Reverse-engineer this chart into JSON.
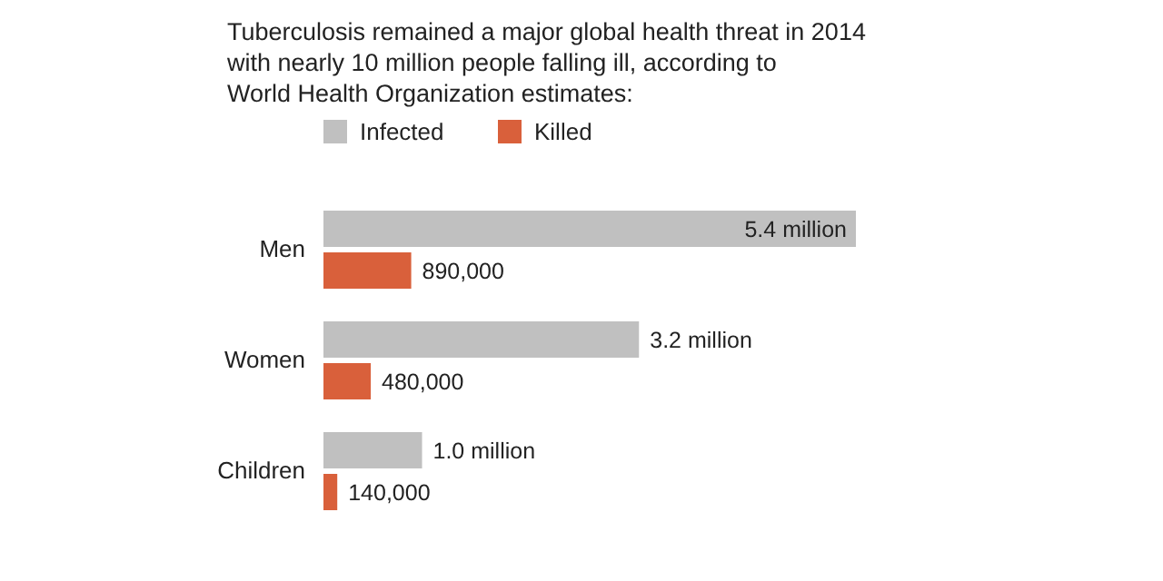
{
  "chart_data": {
    "type": "bar",
    "orientation": "horizontal",
    "title": "Tuberculosis remained a major global health threat in 2014 with nearly 10 million people falling ill, according to World Health Organization estimates:",
    "categories": [
      "Men",
      "Women",
      "Children"
    ],
    "legend": "top left",
    "series": [
      {
        "name": "Infected",
        "color": "#c0c0c0",
        "values": [
          5400000,
          3200000,
          1000000
        ],
        "value_labels": [
          "5.4 million",
          "3.2 million",
          "1.0 million"
        ]
      },
      {
        "name": "Killed",
        "color": "#d9603b",
        "values": [
          890000,
          480000,
          140000
        ],
        "value_labels": [
          "890,000",
          "480,000",
          "140,000"
        ]
      }
    ]
  }
}
